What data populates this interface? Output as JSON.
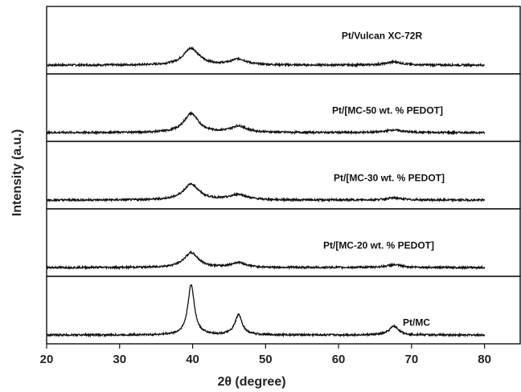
{
  "chart_data": {
    "type": "line",
    "xlabel": "2θ (degree)",
    "ylabel": "Intensity (a.u.)",
    "xlim": [
      20,
      85
    ],
    "xticks": [
      20,
      30,
      40,
      50,
      60,
      70,
      80
    ],
    "stacked_panels": true,
    "series": [
      {
        "name": "Pt/Vulcan XC-72R",
        "peaks": [
          {
            "x": 39.8,
            "height": 0.32,
            "width": 1.3
          },
          {
            "x": 46.3,
            "height": 0.11,
            "width": 1.3
          },
          {
            "x": 67.6,
            "height": 0.06,
            "width": 1.3
          }
        ]
      },
      {
        "name": "Pt/[MC-50 wt. % PEDOT]",
        "peaks": [
          {
            "x": 39.8,
            "height": 0.36,
            "width": 1.2
          },
          {
            "x": 46.3,
            "height": 0.12,
            "width": 1.3
          },
          {
            "x": 67.6,
            "height": 0.05,
            "width": 1.3
          }
        ]
      },
      {
        "name": "Pt/[MC-30 wt. % PEDOT]",
        "peaks": [
          {
            "x": 39.8,
            "height": 0.3,
            "width": 1.3
          },
          {
            "x": 46.3,
            "height": 0.1,
            "width": 1.4
          },
          {
            "x": 67.6,
            "height": 0.04,
            "width": 1.3
          }
        ]
      },
      {
        "name": "Pt/[MC-20 wt. % PEDOT]",
        "peaks": [
          {
            "x": 39.8,
            "height": 0.28,
            "width": 1.2
          },
          {
            "x": 46.3,
            "height": 0.09,
            "width": 1.2
          },
          {
            "x": 67.6,
            "height": 0.05,
            "width": 1.3
          }
        ]
      },
      {
        "name": "Pt/MC",
        "peaks": [
          {
            "x": 39.8,
            "height": 0.95,
            "width": 0.55
          },
          {
            "x": 46.3,
            "height": 0.38,
            "width": 0.6
          },
          {
            "x": 67.6,
            "height": 0.17,
            "width": 0.75
          }
        ]
      }
    ]
  }
}
